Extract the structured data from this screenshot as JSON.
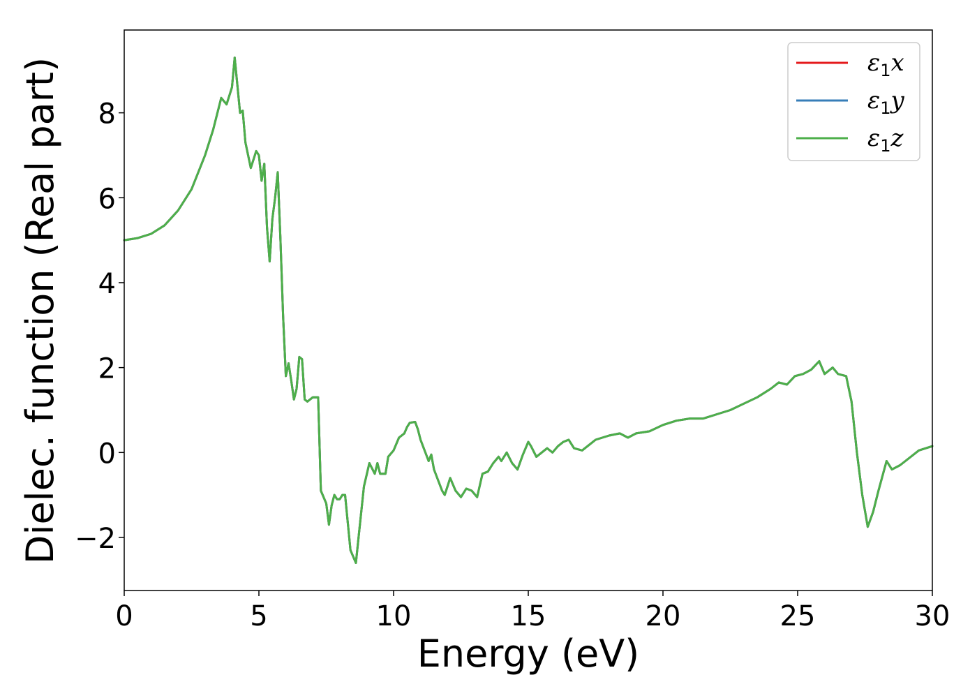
{
  "chart_data": {
    "type": "line",
    "title": "",
    "xlabel": "Energy (eV)",
    "ylabel": "Dielec. function (Real part)",
    "xlim": [
      0,
      30
    ],
    "ylim": [
      -3.25,
      9.95
    ],
    "xticks": [
      0,
      5,
      10,
      15,
      20,
      25,
      30
    ],
    "yticks": [
      -2,
      0,
      2,
      4,
      6,
      8
    ],
    "xtick_labels": [
      "0",
      "5",
      "10",
      "15",
      "20",
      "25",
      "30"
    ],
    "ytick_labels": [
      "−2",
      "0",
      "2",
      "4",
      "6",
      "8"
    ],
    "grid": false,
    "legend_position": "top-right",
    "x": [
      0,
      0.5,
      1,
      1.5,
      2,
      2.5,
      3,
      3.3,
      3.6,
      3.8,
      4.0,
      4.1,
      4.3,
      4.4,
      4.5,
      4.7,
      4.9,
      5.0,
      5.1,
      5.2,
      5.3,
      5.4,
      5.5,
      5.6,
      5.7,
      5.8,
      5.9,
      6.0,
      6.1,
      6.2,
      6.3,
      6.4,
      6.5,
      6.6,
      6.7,
      6.8,
      7.0,
      7.2,
      7.3,
      7.5,
      7.6,
      7.7,
      7.8,
      7.9,
      8.0,
      8.1,
      8.2,
      8.4,
      8.6,
      8.7,
      8.9,
      9.1,
      9.3,
      9.4,
      9.5,
      9.7,
      9.8,
      10.0,
      10.2,
      10.4,
      10.5,
      10.6,
      10.8,
      10.9,
      11.0,
      11.3,
      11.4,
      11.5,
      11.8,
      11.9,
      12.0,
      12.1,
      12.3,
      12.5,
      12.7,
      12.9,
      13.1,
      13.3,
      13.5,
      13.7,
      13.9,
      14.0,
      14.2,
      14.4,
      14.6,
      14.8,
      15.0,
      15.1,
      15.3,
      15.5,
      15.7,
      15.9,
      16.1,
      16.3,
      16.5,
      16.7,
      17.0,
      17.5,
      18.0,
      18.4,
      18.7,
      19.0,
      19.5,
      20.0,
      20.5,
      21.0,
      21.5,
      22.0,
      22.5,
      23.0,
      23.5,
      24.0,
      24.3,
      24.6,
      24.9,
      25.2,
      25.5,
      25.8,
      26.0,
      26.3,
      26.5,
      26.8,
      27.0,
      27.2,
      27.4,
      27.6,
      27.8,
      28.0,
      28.3,
      28.5,
      28.8,
      29.0,
      29.5,
      30.0
    ],
    "series": [
      {
        "name": "x",
        "color": "#e41a1c"
      },
      {
        "name": "y",
        "color": "#377eb8"
      },
      {
        "name": "z",
        "color": "#4daf4a",
        "values": [
          5.0,
          5.05,
          5.15,
          5.35,
          5.7,
          6.2,
          7.0,
          7.6,
          8.35,
          8.2,
          8.6,
          9.3,
          8.0,
          8.05,
          7.3,
          6.7,
          7.1,
          7.0,
          6.4,
          6.8,
          5.3,
          4.5,
          5.5,
          6.0,
          6.6,
          5.0,
          3.2,
          1.8,
          2.1,
          1.7,
          1.25,
          1.5,
          2.25,
          2.2,
          1.25,
          1.2,
          1.3,
          1.3,
          -0.9,
          -1.2,
          -1.7,
          -1.25,
          -1.0,
          -1.1,
          -1.1,
          -1.0,
          -1.0,
          -2.3,
          -2.6,
          -2.0,
          -0.8,
          -0.25,
          -0.5,
          -0.25,
          -0.5,
          -0.5,
          -0.1,
          0.05,
          0.35,
          0.45,
          0.6,
          0.7,
          0.72,
          0.55,
          0.3,
          -0.2,
          -0.05,
          -0.4,
          -0.9,
          -1.0,
          -0.8,
          -0.6,
          -0.9,
          -1.05,
          -0.85,
          -0.9,
          -1.05,
          -0.5,
          -0.45,
          -0.25,
          -0.1,
          -0.2,
          0.0,
          -0.25,
          -0.4,
          -0.05,
          0.25,
          0.15,
          -0.1,
          0.0,
          0.1,
          0.0,
          0.15,
          0.25,
          0.3,
          0.1,
          0.05,
          0.3,
          0.4,
          0.45,
          0.35,
          0.45,
          0.5,
          0.65,
          0.75,
          0.8,
          0.8,
          0.9,
          1.0,
          1.15,
          1.3,
          1.5,
          1.65,
          1.6,
          1.8,
          1.85,
          1.95,
          2.15,
          1.85,
          2.0,
          1.85,
          1.8,
          1.2,
          0.0,
          -1.0,
          -1.75,
          -1.4,
          -0.9,
          -0.2,
          -0.4,
          -0.3,
          -0.2,
          0.05,
          0.15
        ]
      }
    ]
  }
}
